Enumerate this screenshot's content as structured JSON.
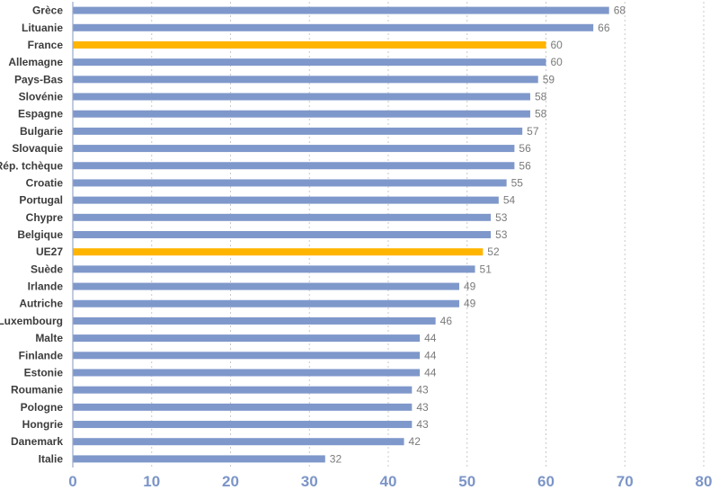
{
  "chart_data": {
    "type": "bar",
    "orientation": "horizontal",
    "categories": [
      "Grèce",
      "Lituanie",
      "France",
      "Allemagne",
      "Pays-Bas",
      "Slovénie",
      "Espagne",
      "Bulgarie",
      "Slovaquie",
      "Rép. tchèque",
      "Croatie",
      "Portugal",
      "Chypre",
      "Belgique",
      "UE27",
      "Suède",
      "Irlande",
      "Autriche",
      "Luxembourg",
      "Malte",
      "Finlande",
      "Estonie",
      "Roumanie",
      "Pologne",
      "Hongrie",
      "Danemark",
      "Italie"
    ],
    "values": [
      68,
      66,
      60,
      60,
      59,
      58,
      58,
      57,
      56,
      56,
      55,
      54,
      53,
      53,
      52,
      51,
      49,
      49,
      46,
      44,
      44,
      44,
      43,
      43,
      43,
      42,
      32
    ],
    "highlight": [
      "France",
      "UE27"
    ],
    "colors": {
      "bar": "#7f98cb",
      "highlight": "#ffb400"
    },
    "xlim": [
      0,
      80
    ],
    "xticks": [
      0,
      10,
      20,
      30,
      40,
      50,
      60,
      70,
      80
    ],
    "grid": true,
    "title": "",
    "xlabel": "",
    "ylabel": ""
  }
}
